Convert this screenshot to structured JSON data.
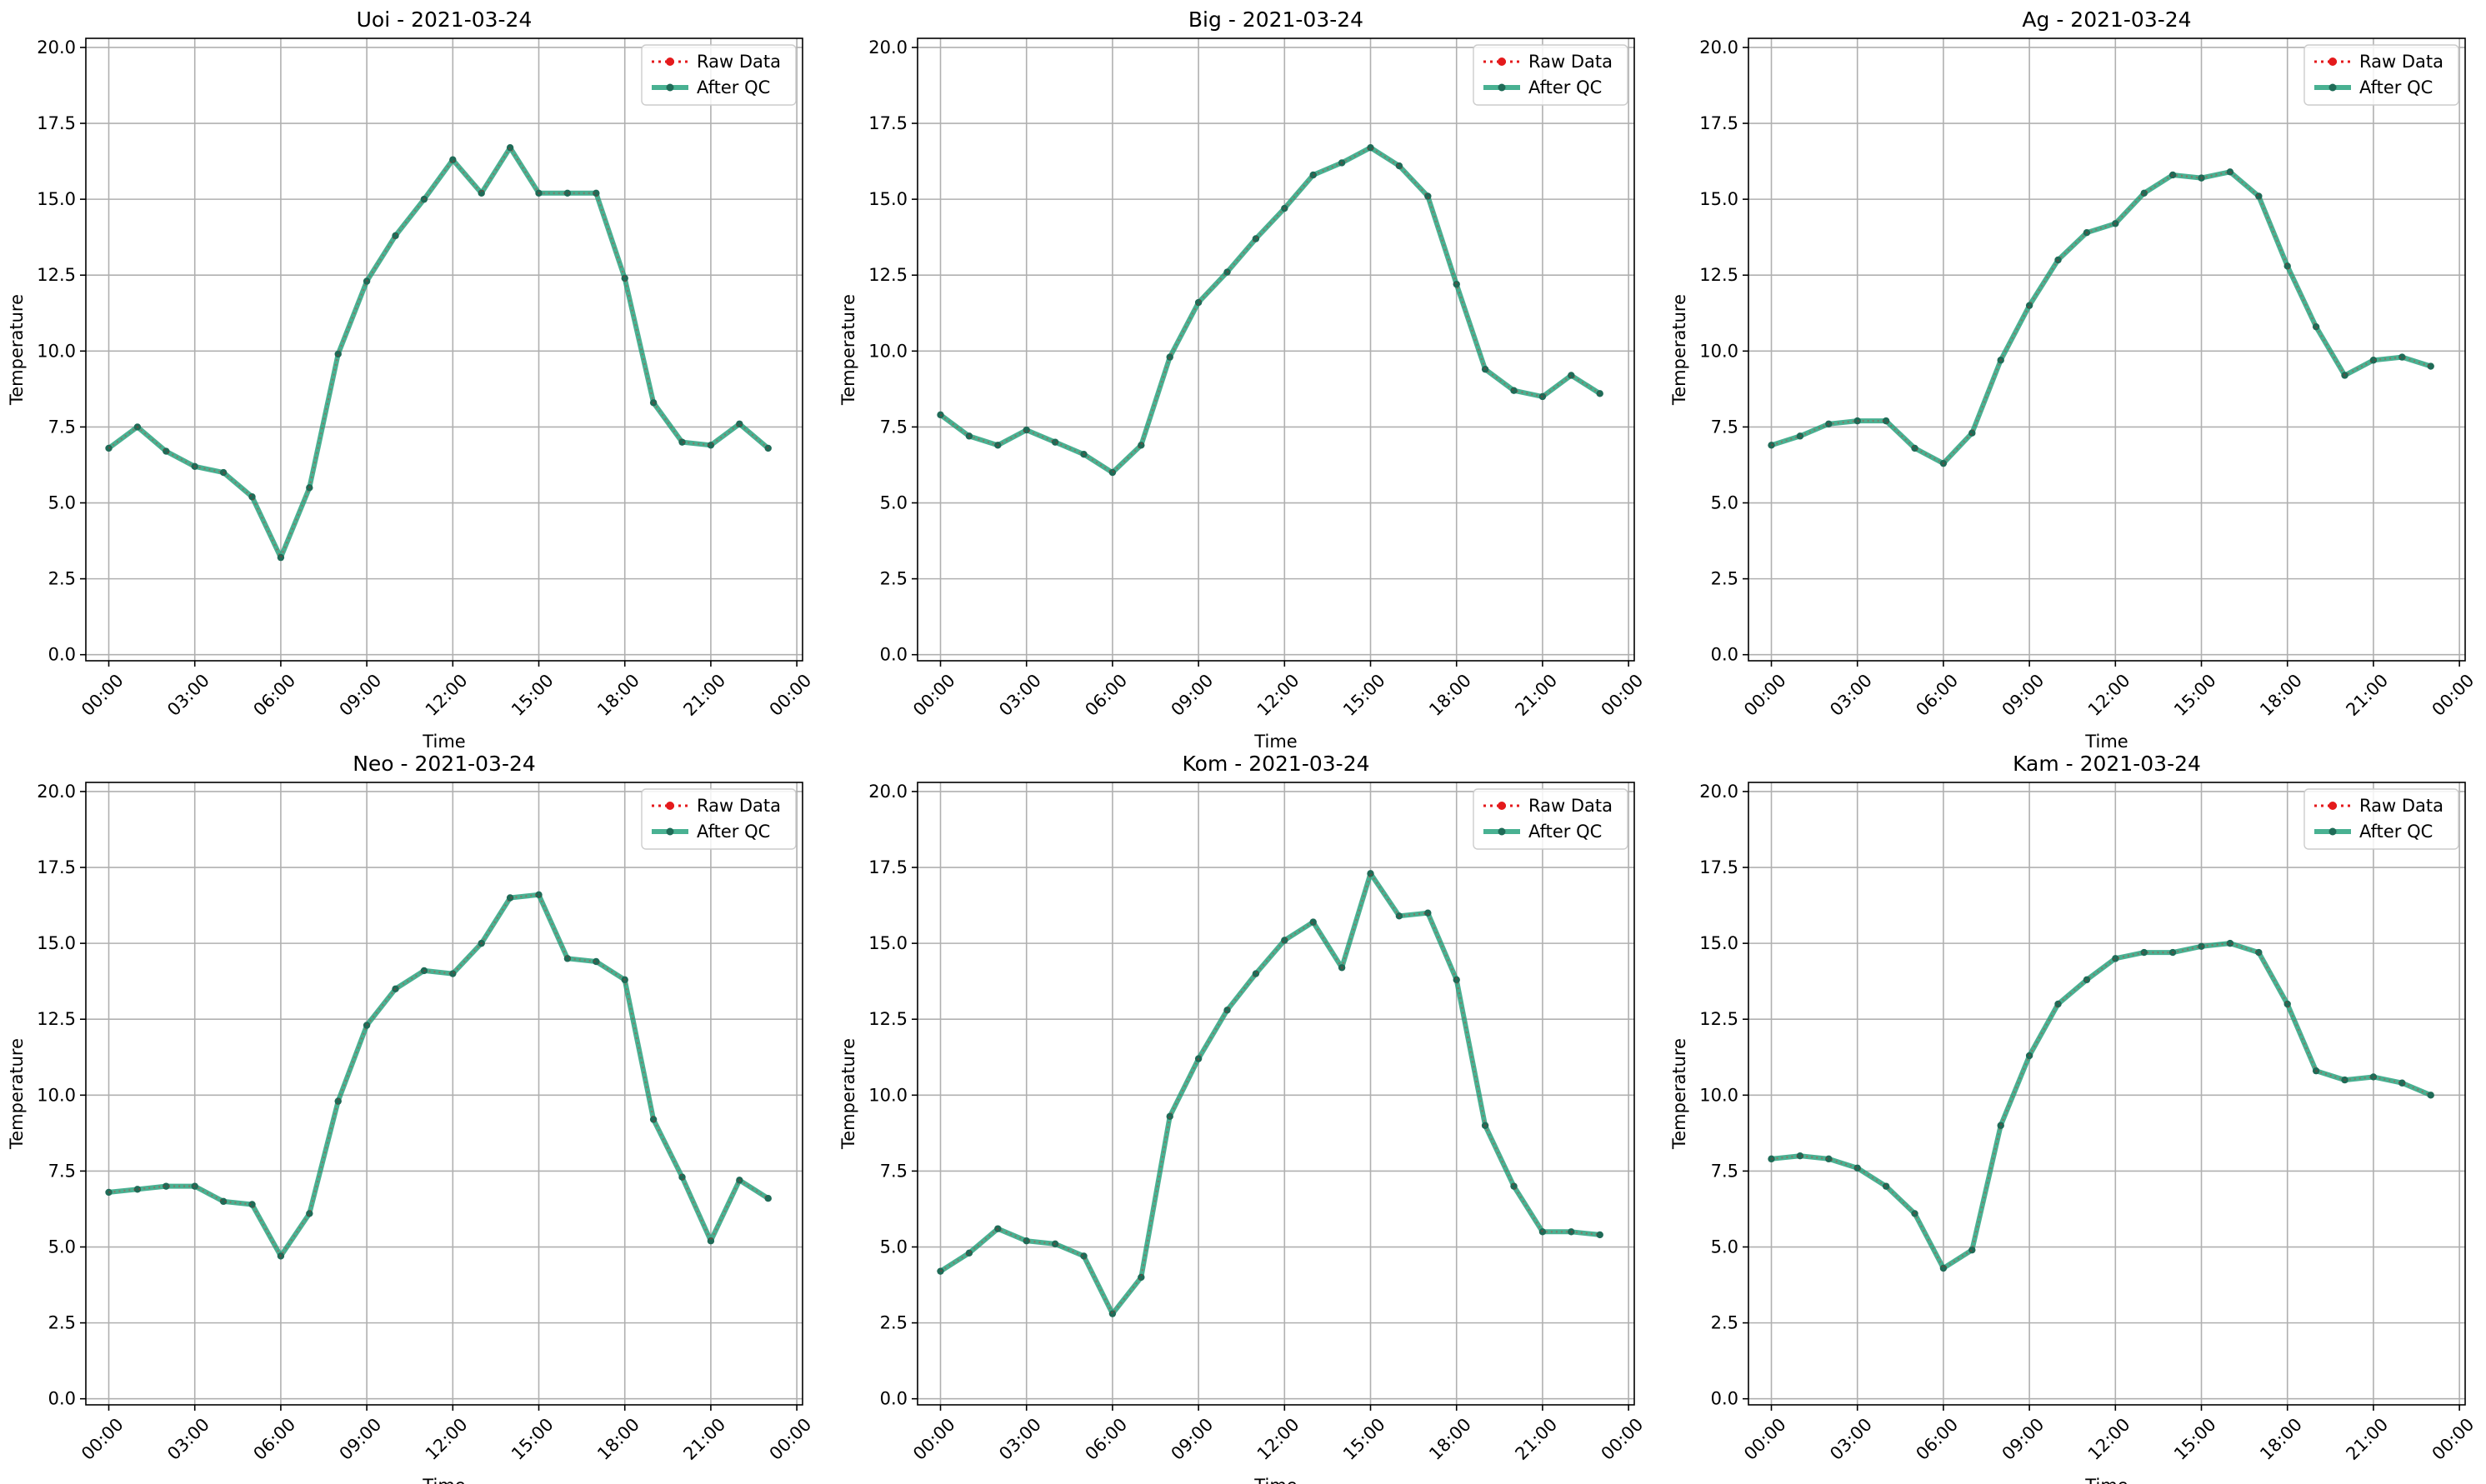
{
  "colors": {
    "raw": "#e41a1c",
    "qc": "#1b9e77",
    "qc_marker": "#1f6b57",
    "grid": "#b0b0b0",
    "axis": "#000000"
  },
  "legend_labels": {
    "raw": "Raw Data",
    "qc": "After QC"
  },
  "chart_data": [
    {
      "type": "line",
      "title": "Uoi - 2021-03-24",
      "xlabel": "Time",
      "ylabel": "Temperature",
      "x_tick_labels": [
        "00:00",
        "03:00",
        "06:00",
        "09:00",
        "12:00",
        "15:00",
        "18:00",
        "21:00",
        "00:00"
      ],
      "y_tick_labels": [
        "0.0",
        "2.5",
        "5.0",
        "7.5",
        "10.0",
        "12.5",
        "15.0",
        "17.5",
        "20.0"
      ],
      "xlim_hours": [
        -0.8,
        24.2
      ],
      "ylim": [
        -0.2,
        20.3
      ],
      "grid": true,
      "legend": "top-right",
      "series": [
        {
          "name": "Raw Data",
          "style": "dotted",
          "values": [
            6.8,
            7.5,
            6.7,
            6.2,
            6.0,
            5.2,
            3.2,
            5.5,
            9.9,
            12.3,
            13.8,
            15.0,
            16.3,
            15.2,
            16.7,
            15.2,
            15.2,
            15.2,
            12.4,
            8.3,
            7.0,
            6.9,
            7.6,
            6.8
          ]
        },
        {
          "name": "After QC",
          "style": "solid",
          "values": [
            6.8,
            7.5,
            6.7,
            6.2,
            6.0,
            5.2,
            3.2,
            5.5,
            9.9,
            12.3,
            13.8,
            15.0,
            16.3,
            15.2,
            16.7,
            15.2,
            15.2,
            15.2,
            12.4,
            8.3,
            7.0,
            6.9,
            7.6,
            6.8
          ]
        }
      ]
    },
    {
      "type": "line",
      "title": "Big - 2021-03-24",
      "xlabel": "Time",
      "ylabel": "Temperature",
      "x_tick_labels": [
        "00:00",
        "03:00",
        "06:00",
        "09:00",
        "12:00",
        "15:00",
        "18:00",
        "21:00",
        "00:00"
      ],
      "y_tick_labels": [
        "0.0",
        "2.5",
        "5.0",
        "7.5",
        "10.0",
        "12.5",
        "15.0",
        "17.5",
        "20.0"
      ],
      "xlim_hours": [
        -0.8,
        24.2
      ],
      "ylim": [
        -0.2,
        20.3
      ],
      "grid": true,
      "legend": "top-right",
      "series": [
        {
          "name": "Raw Data",
          "style": "dotted",
          "values": [
            7.9,
            7.2,
            6.9,
            7.4,
            7.0,
            6.6,
            6.0,
            6.9,
            9.8,
            11.6,
            12.6,
            13.7,
            14.7,
            15.8,
            16.2,
            16.7,
            16.1,
            15.1,
            12.2,
            9.4,
            8.7,
            8.5,
            9.2,
            8.6
          ]
        },
        {
          "name": "After QC",
          "style": "solid",
          "values": [
            7.9,
            7.2,
            6.9,
            7.4,
            7.0,
            6.6,
            6.0,
            6.9,
            9.8,
            11.6,
            12.6,
            13.7,
            14.7,
            15.8,
            16.2,
            16.7,
            16.1,
            15.1,
            12.2,
            9.4,
            8.7,
            8.5,
            9.2,
            8.6
          ]
        }
      ]
    },
    {
      "type": "line",
      "title": "Ag - 2021-03-24",
      "xlabel": "Time",
      "ylabel": "Temperature",
      "x_tick_labels": [
        "00:00",
        "03:00",
        "06:00",
        "09:00",
        "12:00",
        "15:00",
        "18:00",
        "21:00",
        "00:00"
      ],
      "y_tick_labels": [
        "0.0",
        "2.5",
        "5.0",
        "7.5",
        "10.0",
        "12.5",
        "15.0",
        "17.5",
        "20.0"
      ],
      "xlim_hours": [
        -0.8,
        24.2
      ],
      "ylim": [
        -0.2,
        20.3
      ],
      "grid": true,
      "legend": "top-right",
      "series": [
        {
          "name": "Raw Data",
          "style": "dotted",
          "values": [
            6.9,
            7.2,
            7.6,
            7.7,
            7.7,
            6.8,
            6.3,
            7.3,
            9.7,
            11.5,
            13.0,
            13.9,
            14.2,
            15.2,
            15.8,
            15.7,
            15.9,
            15.1,
            12.8,
            10.8,
            9.2,
            9.7,
            9.8,
            9.5
          ]
        },
        {
          "name": "After QC",
          "style": "solid",
          "values": [
            6.9,
            7.2,
            7.6,
            7.7,
            7.7,
            6.8,
            6.3,
            7.3,
            9.7,
            11.5,
            13.0,
            13.9,
            14.2,
            15.2,
            15.8,
            15.7,
            15.9,
            15.1,
            12.8,
            10.8,
            9.2,
            9.7,
            9.8,
            9.5
          ]
        }
      ]
    },
    {
      "type": "line",
      "title": "Neo - 2021-03-24",
      "xlabel": "Time",
      "ylabel": "Temperature",
      "x_tick_labels": [
        "00:00",
        "03:00",
        "06:00",
        "09:00",
        "12:00",
        "15:00",
        "18:00",
        "21:00",
        "00:00"
      ],
      "y_tick_labels": [
        "0.0",
        "2.5",
        "5.0",
        "7.5",
        "10.0",
        "12.5",
        "15.0",
        "17.5",
        "20.0"
      ],
      "xlim_hours": [
        -0.8,
        24.2
      ],
      "ylim": [
        -0.2,
        20.3
      ],
      "grid": true,
      "legend": "top-right",
      "series": [
        {
          "name": "Raw Data",
          "style": "dotted",
          "values": [
            6.8,
            6.9,
            7.0,
            7.0,
            6.5,
            6.4,
            4.7,
            6.1,
            9.8,
            12.3,
            13.5,
            14.1,
            14.0,
            15.0,
            16.5,
            16.6,
            14.5,
            14.4,
            13.8,
            9.2,
            7.3,
            5.2,
            7.2,
            6.6
          ]
        },
        {
          "name": "After QC",
          "style": "solid",
          "values": [
            6.8,
            6.9,
            7.0,
            7.0,
            6.5,
            6.4,
            4.7,
            6.1,
            9.8,
            12.3,
            13.5,
            14.1,
            14.0,
            15.0,
            16.5,
            16.6,
            14.5,
            14.4,
            13.8,
            9.2,
            7.3,
            5.2,
            7.2,
            6.6
          ]
        }
      ]
    },
    {
      "type": "line",
      "title": "Kom - 2021-03-24",
      "xlabel": "Time",
      "ylabel": "Temperature",
      "x_tick_labels": [
        "00:00",
        "03:00",
        "06:00",
        "09:00",
        "12:00",
        "15:00",
        "18:00",
        "21:00",
        "00:00"
      ],
      "y_tick_labels": [
        "0.0",
        "2.5",
        "5.0",
        "7.5",
        "10.0",
        "12.5",
        "15.0",
        "17.5",
        "20.0"
      ],
      "xlim_hours": [
        -0.8,
        24.2
      ],
      "ylim": [
        -0.2,
        20.3
      ],
      "grid": true,
      "legend": "top-right",
      "series": [
        {
          "name": "Raw Data",
          "style": "dotted",
          "values": [
            4.2,
            4.8,
            5.6,
            5.2,
            5.1,
            4.7,
            2.8,
            4.0,
            9.3,
            11.2,
            12.8,
            14.0,
            15.1,
            15.7,
            14.2,
            17.3,
            15.9,
            16.0,
            13.8,
            9.0,
            7.0,
            5.5,
            5.5,
            5.4
          ]
        },
        {
          "name": "After QC",
          "style": "solid",
          "values": [
            4.2,
            4.8,
            5.6,
            5.2,
            5.1,
            4.7,
            2.8,
            4.0,
            9.3,
            11.2,
            12.8,
            14.0,
            15.1,
            15.7,
            14.2,
            17.3,
            15.9,
            16.0,
            13.8,
            9.0,
            7.0,
            5.5,
            5.5,
            5.4
          ]
        }
      ]
    },
    {
      "type": "line",
      "title": "Kam - 2021-03-24",
      "xlabel": "Time",
      "ylabel": "Temperature",
      "x_tick_labels": [
        "00:00",
        "03:00",
        "06:00",
        "09:00",
        "12:00",
        "15:00",
        "18:00",
        "21:00",
        "00:00"
      ],
      "y_tick_labels": [
        "0.0",
        "2.5",
        "5.0",
        "7.5",
        "10.0",
        "12.5",
        "15.0",
        "17.5",
        "20.0"
      ],
      "xlim_hours": [
        -0.8,
        24.2
      ],
      "ylim": [
        -0.2,
        20.3
      ],
      "grid": true,
      "legend": "top-right",
      "series": [
        {
          "name": "Raw Data",
          "style": "dotted",
          "values": [
            7.9,
            8.0,
            7.9,
            7.6,
            7.0,
            6.1,
            4.3,
            4.9,
            9.0,
            11.3,
            13.0,
            13.8,
            14.5,
            14.7,
            14.7,
            14.9,
            15.0,
            14.7,
            13.0,
            10.8,
            10.5,
            10.6,
            10.4,
            10.0
          ]
        },
        {
          "name": "After QC",
          "style": "solid",
          "values": [
            7.9,
            8.0,
            7.9,
            7.6,
            7.0,
            6.1,
            4.3,
            4.9,
            9.0,
            11.3,
            13.0,
            13.8,
            14.5,
            14.7,
            14.7,
            14.9,
            15.0,
            14.7,
            13.0,
            10.8,
            10.5,
            10.6,
            10.4,
            10.0
          ]
        }
      ]
    }
  ]
}
